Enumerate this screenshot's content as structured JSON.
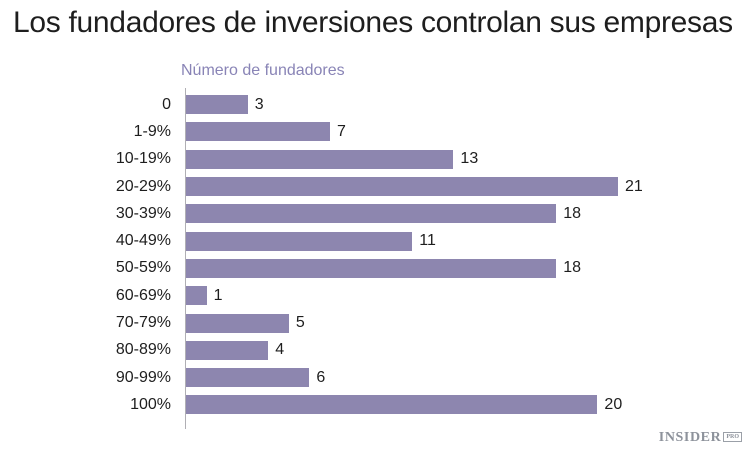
{
  "title": "Los fundadores de inversiones controlan sus empresas",
  "chart_data": {
    "type": "bar",
    "orientation": "horizontal",
    "title": "Los fundadores de inversiones controlan sus empresas",
    "subtitle": "Número de fundadores",
    "categories": [
      "0",
      "1-9%",
      "10-19%",
      "20-29%",
      "30-39%",
      "40-49%",
      "50-59%",
      "60-69%",
      "70-79%",
      "80-89%",
      "90-99%",
      "100%"
    ],
    "values": [
      3,
      7,
      13,
      21,
      18,
      11,
      18,
      1,
      5,
      4,
      6,
      20
    ],
    "xlabel": "",
    "ylabel": "Número de fundadores",
    "xlim": [
      0,
      21
    ],
    "value_labels": true,
    "grid": false,
    "legend": "none",
    "bar_color": "#8d86af",
    "axis_color": "#b0afb4",
    "subtitle_color": "#8984b6",
    "text_color": "#1e1e1e"
  },
  "branding": {
    "logo_text": "INSIDER",
    "logo_badge": "PRO",
    "logo_color": "#8d929b"
  }
}
